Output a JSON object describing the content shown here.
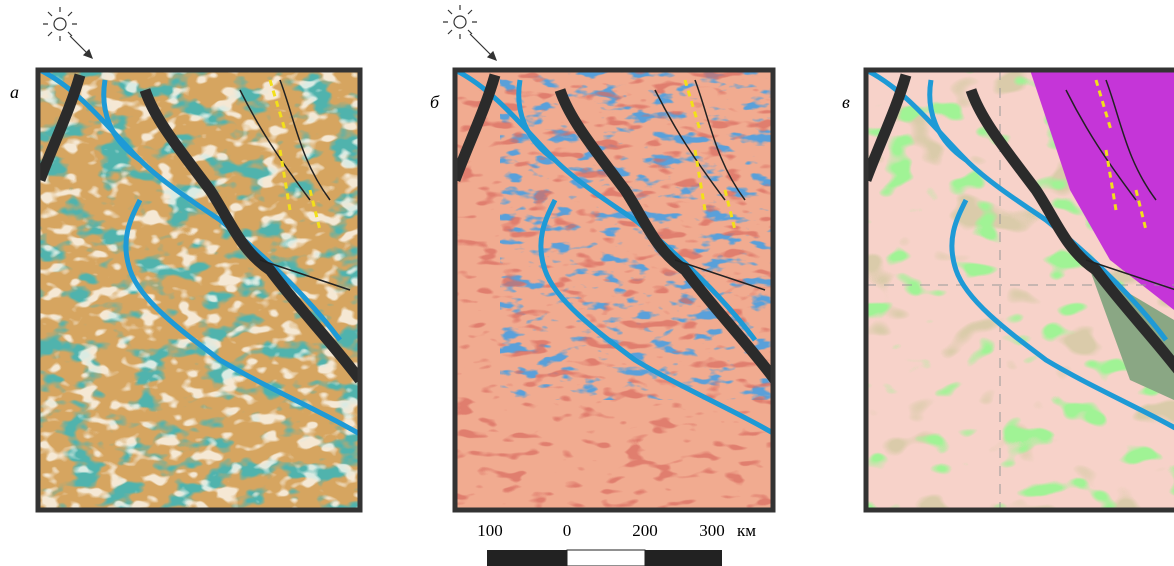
{
  "panels": [
    {
      "label": "а"
    },
    {
      "label": "б"
    },
    {
      "label": "в"
    }
  ],
  "scale_bar": {
    "ticks": [
      "100",
      "0",
      "200",
      "300"
    ],
    "unit": "км"
  }
}
